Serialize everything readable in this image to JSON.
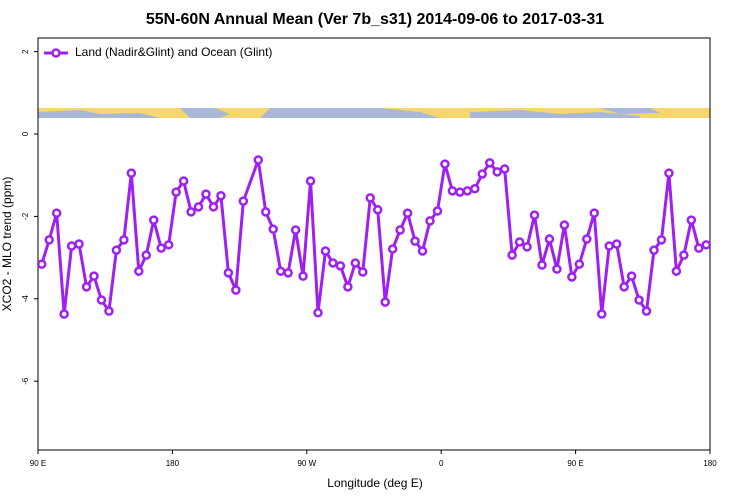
{
  "chart_data": {
    "type": "line",
    "title": "55N-60N Annual Mean (Ver 7b_s31)   2014-09-06 to 2017-03-31",
    "xlabel": "Longitude (deg E)",
    "ylabel": "XCO2 - MLO trend (ppm)",
    "x": [
      92.5,
      97.5,
      102.5,
      107.5,
      112.5,
      117.5,
      122.5,
      127.5,
      132.5,
      137.5,
      142.5,
      147.5,
      152.5,
      157.5,
      162.5,
      167.5,
      172.5,
      177.5,
      182.5,
      187.5,
      192.5,
      197.5,
      202.5,
      207.5,
      212.5,
      217.5,
      222.5,
      227.5,
      237.5,
      242.5,
      247.5,
      252.5,
      257.5,
      262.5,
      267.5,
      272.5,
      277.5,
      282.5,
      287.5,
      292.5,
      297.5,
      302.5,
      307.5,
      312.5,
      317.5,
      322.5,
      327.5,
      332.5,
      337.5,
      342.5,
      347.5,
      352.5,
      357.5,
      362.5,
      367.5,
      372.5,
      377.5,
      382.5,
      387.5,
      392.5,
      397.5,
      402.5,
      407.5,
      412.5,
      417.5,
      422.5,
      427.5,
      432.5,
      437.5,
      442.5,
      447.5,
      452.5,
      457.5,
      462.5,
      467.5,
      472.5,
      477.5,
      482.5,
      487.5,
      492.5,
      497.5,
      502.5,
      507.5,
      512.5,
      517.5,
      522.5,
      527.5,
      532.5,
      537.5
    ],
    "series": [
      {
        "name": "Land (Nadir&Glint) and Ocean (Glint)",
        "color": "#a020f0",
        "values": [
          -3.16,
          -2.57,
          -1.92,
          -4.37,
          -2.72,
          -2.67,
          -3.71,
          -3.45,
          -4.03,
          -4.3,
          -2.82,
          -2.57,
          -0.95,
          -3.33,
          -2.94,
          -2.09,
          -2.77,
          -2.69,
          -1.41,
          -1.14,
          -1.89,
          -1.77,
          -1.46,
          -1.77,
          -1.5,
          -3.37,
          -3.79,
          -1.63,
          -0.63,
          -1.89,
          -2.31,
          -3.33,
          -3.37,
          -2.33,
          -3.45,
          -1.14,
          -4.34,
          -2.84,
          -3.13,
          -3.2,
          -3.71,
          -3.13,
          -3.35,
          -1.55,
          -1.84,
          -4.08,
          -2.79,
          -2.33,
          -1.92,
          -2.6,
          -2.84,
          -2.11,
          -1.87,
          -0.73,
          -1.38,
          -1.41,
          -1.38,
          -1.33,
          -0.97,
          -0.7,
          -0.92,
          -0.85,
          -2.94,
          -2.62,
          -2.74,
          -1.97,
          -3.18,
          -2.55,
          -3.28,
          -2.21,
          -3.47,
          -3.16,
          -2.55,
          -1.92,
          -4.37,
          -2.72,
          -2.67,
          -3.71,
          -3.45,
          -4.03,
          -4.3,
          -2.82,
          -2.57,
          -0.95,
          -3.33,
          -2.94,
          -2.09,
          -2.77,
          -2.69
        ]
      }
    ],
    "xlim": [
      90,
      540
    ],
    "xticks": [
      {
        "value": 90,
        "label": "90 E"
      },
      180,
      {
        "value": 270,
        "label": "90 W"
      },
      {
        "value": 360,
        "label": "0"
      },
      {
        "value": 450,
        "label": "90 E"
      },
      {
        "value": 540,
        "label": "180"
      }
    ],
    "ylim": [
      -7.67,
      2.33
    ],
    "yticks": [
      -6,
      -4,
      -2,
      0,
      2
    ],
    "grid": false,
    "legend": "top-left"
  }
}
